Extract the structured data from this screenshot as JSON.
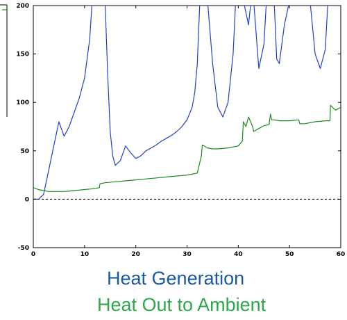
{
  "chart_data": {
    "type": "line",
    "title": "",
    "xlabel": "",
    "ylabel": "",
    "xlim": [
      0,
      60
    ],
    "ylim": [
      -50,
      200
    ],
    "xticks": [
      0,
      10,
      20,
      30,
      40,
      50,
      60
    ],
    "yticks": [
      -50,
      0,
      50,
      100,
      150,
      200
    ],
    "xtick_labels": [
      "0",
      "10",
      "20",
      "30",
      "40",
      "50",
      "60"
    ],
    "ytick_labels": [
      "-50",
      "0",
      "50",
      "100",
      "150",
      "200"
    ],
    "grid": false,
    "legend_position": "below",
    "reference_line": {
      "y": 0,
      "style": "dashed"
    },
    "series": [
      {
        "name": "Heat Generation",
        "color": "#1f3fcc",
        "legend_color": "#1a5aa0",
        "x": [
          0,
          1,
          2,
          3,
          4,
          5,
          6,
          7,
          8,
          9,
          10,
          11,
          11.5,
          12,
          12.5,
          13,
          13.5,
          14,
          14.5,
          15,
          15.5,
          16,
          17,
          18,
          19,
          20,
          21,
          22,
          23,
          24,
          25,
          26,
          27,
          28,
          29,
          30,
          31,
          31.5,
          32,
          32.5,
          33,
          33.5,
          34,
          35,
          36,
          37,
          38,
          39,
          39.5,
          40,
          40.5,
          41,
          42,
          42.5,
          43,
          44,
          45,
          45.5,
          46,
          47,
          47.5,
          48,
          49,
          50,
          51,
          51.5,
          52,
          53,
          54,
          55,
          56,
          57,
          57.5,
          58
        ],
        "y": [
          0,
          0,
          5,
          30,
          55,
          80,
          65,
          75,
          90,
          105,
          125,
          165,
          200,
          200,
          200,
          200,
          200,
          200,
          130,
          70,
          45,
          35,
          40,
          55,
          48,
          42,
          45,
          50,
          53,
          56,
          60,
          63,
          66,
          70,
          75,
          82,
          95,
          110,
          140,
          200,
          200,
          200,
          200,
          140,
          95,
          85,
          100,
          150,
          200,
          200,
          200,
          200,
          180,
          200,
          200,
          135,
          160,
          200,
          200,
          200,
          145,
          140,
          180,
          200,
          200,
          200,
          200,
          200,
          200,
          150,
          135,
          155,
          200,
          200
        ],
        "note": "curve exceeds plotted range where y=200"
      },
      {
        "name": "Heat Out to Ambient",
        "color": "#1e8a1e",
        "legend_color": "#2ea84a",
        "x": [
          0,
          1,
          2,
          3,
          4,
          5,
          6,
          7,
          8,
          9,
          10,
          11,
          12,
          12.9,
          13,
          14,
          16,
          18,
          20,
          22,
          24,
          26,
          28,
          30,
          32,
          32.8,
          33,
          34,
          35,
          36,
          38,
          40,
          40.8,
          41,
          41.5,
          42,
          42.8,
          43,
          44,
          45,
          46,
          46.3,
          46.5,
          47,
          48,
          50,
          51.8,
          52,
          53,
          55,
          57,
          57.9,
          58,
          59,
          60
        ],
        "y": [
          12,
          10,
          9,
          8,
          8,
          8,
          8,
          8.5,
          9,
          9.5,
          10,
          10.5,
          11,
          12,
          16,
          17,
          18,
          19,
          20,
          21,
          22,
          23,
          24,
          25,
          27,
          45,
          56,
          53,
          52,
          52,
          53,
          55,
          60,
          80,
          75,
          85,
          75,
          70,
          73,
          76,
          77,
          88,
          82,
          82,
          81,
          81,
          82,
          78,
          78,
          80,
          81,
          81,
          97,
          92,
          95
        ]
      }
    ]
  }
}
